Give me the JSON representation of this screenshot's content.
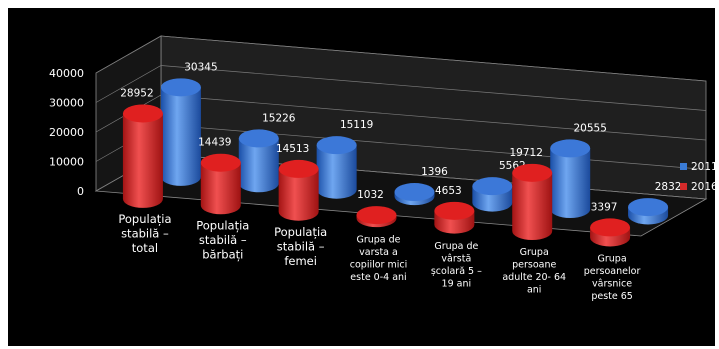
{
  "chart_data": {
    "type": "bar",
    "style": "3d-cylinder",
    "categories": [
      [
        "Populația",
        "stabilă –",
        "total"
      ],
      [
        "Populația",
        "stabilă –",
        "bărbați"
      ],
      [
        "Populația",
        "stabilă –",
        "femei"
      ],
      [
        "Grupa de",
        "varsta a",
        "copiilor mici",
        "este 0-4 ani"
      ],
      [
        "Grupa  de",
        "vârstă",
        "școlară 5 –",
        "19 ani"
      ],
      [
        "Grupa",
        "persoane",
        "adulte 20- 64",
        "ani"
      ],
      [
        "Grupa",
        "persoanelor",
        "vârsnice",
        "peste 65"
      ]
    ],
    "series": [
      {
        "name": "2011",
        "color": "#3a7bd5",
        "values": [
          30345,
          15226,
          15119,
          1396,
          5562,
          20555,
          2832
        ]
      },
      {
        "name": "2016",
        "color": "#d42a2a",
        "values": [
          28952,
          14439,
          14513,
          1032,
          4653,
          19712,
          3397
        ]
      }
    ],
    "y_ticks": [
      "0",
      "10000",
      "20000",
      "30000",
      "40000"
    ],
    "ylim": [
      0,
      40000
    ],
    "grid": true,
    "legend": "right"
  }
}
